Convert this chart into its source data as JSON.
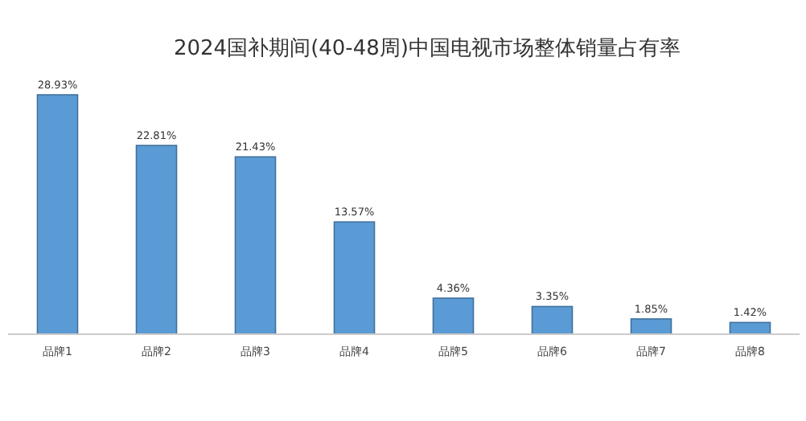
{
  "chart_data": {
    "type": "bar",
    "title": "2024国补期间(40-48周)中国电视市场整体销量占有率",
    "categories": [
      "品牌1",
      "品牌2",
      "品牌3",
      "品牌4",
      "品牌5",
      "品牌6",
      "品牌7",
      "品牌8"
    ],
    "values": [
      28.93,
      22.81,
      21.43,
      13.57,
      4.36,
      3.35,
      1.85,
      1.42
    ],
    "value_labels": [
      "28.93%",
      "22.81%",
      "21.43%",
      "13.57%",
      "4.36%",
      "3.35%",
      "1.85%",
      "1.42%"
    ],
    "color": "#5b9bd5",
    "grid": false
  }
}
